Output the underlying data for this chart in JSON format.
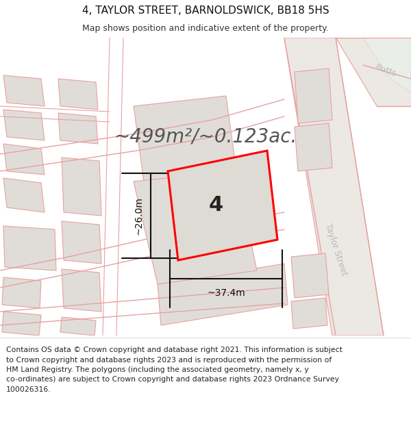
{
  "title": "4, TAYLOR STREET, BARNOLDSWICK, BB18 5HS",
  "subtitle": "Map shows position and indicative extent of the property.",
  "footer": "Contains OS data © Crown copyright and database right 2021. This information is subject\nto Crown copyright and database rights 2023 and is reproduced with the permission of\nHM Land Registry. The polygons (including the associated geometry, namely x, y\nco-ordinates) are subject to Crown copyright and database rights 2023 Ordnance Survey\n100026316.",
  "area_text": "~499m²/~0.123ac.",
  "dim_width": "~37.4m",
  "dim_height": "~26.0m",
  "plot_number": "4",
  "map_bg": "#f7f6f4",
  "road_color": "#f5c0c0",
  "road_lc": "#e8a0a0",
  "building_fill": "#e0ddd8",
  "building_lc": "#e8a0a0",
  "plot_fill": "#dedad4",
  "plot_outline": "#ff0000",
  "dim_color": "#111111",
  "title_fontsize": 11,
  "subtitle_fontsize": 9,
  "footer_fontsize": 7.8,
  "area_fontsize": 20,
  "dim_fontsize": 10,
  "plot_label_fontsize": 22,
  "road_label_fontsize": 9,
  "taylor_label_fontsize": 9,
  "butts_label_fontsize": 9
}
